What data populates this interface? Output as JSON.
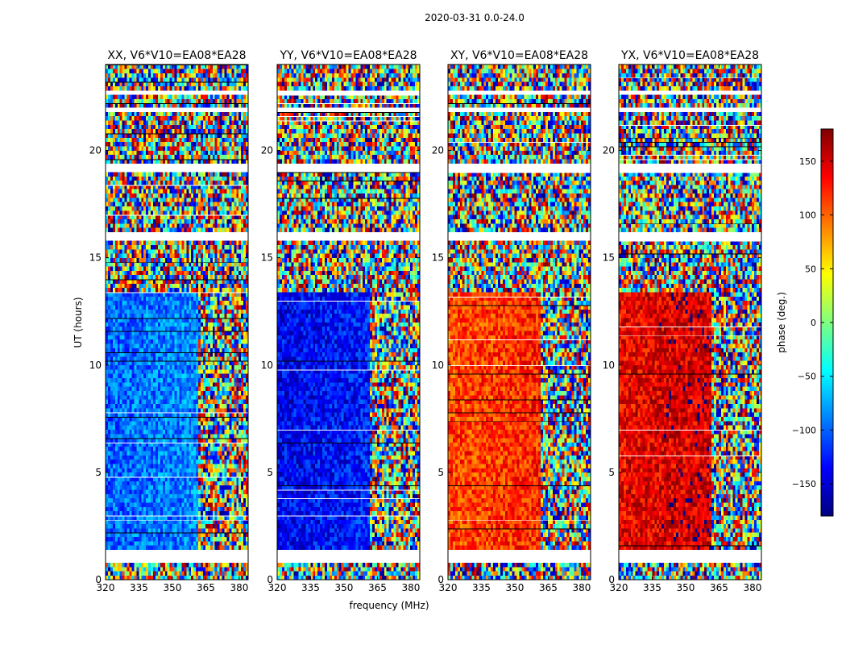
{
  "figure": {
    "suptitle": "2020-03-31 0.0-24.0"
  },
  "chart_data": {
    "type": "heatmap",
    "suptitle": "2020-03-31 0.0-24.0",
    "xlabel": "frequency (MHz)",
    "ylabel": "UT (hours)",
    "xlim": [
      320,
      384
    ],
    "ylim": [
      0,
      24
    ],
    "x_ticks": [
      320,
      335,
      350,
      365,
      380
    ],
    "y_ticks": [
      0,
      5,
      10,
      15,
      20
    ],
    "panels": [
      {
        "title": "XX, V6*V10=EA08*EA28",
        "pol": "XX",
        "baseline": "V6*V10=EA08*EA28",
        "typical_phase_deg_below_361MHz": -100
      },
      {
        "title": "YY, V6*V10=EA08*EA28",
        "pol": "YY",
        "baseline": "V6*V10=EA08*EA28",
        "typical_phase_deg_below_361MHz": -140
      },
      {
        "title": "XY, V6*V10=EA08*EA28",
        "pol": "XY",
        "baseline": "V6*V10=EA08*EA28",
        "typical_phase_deg_below_361MHz": 110
      },
      {
        "title": "YX, V6*V10=EA08*EA28",
        "pol": "YX",
        "baseline": "V6*V10=EA08*EA28",
        "typical_phase_deg_below_361MHz": 140
      }
    ],
    "colorbar": {
      "label": "phase (deg.)",
      "range": [
        -180,
        180
      ],
      "ticks": [
        150,
        100,
        50,
        0,
        -50,
        -100,
        -150
      ],
      "tick_labels": [
        "150",
        "100",
        "50",
        "0",
        "−50",
        "−100",
        "−150"
      ],
      "colormap": "jet",
      "colors": [
        "#00007f",
        "#0000ff",
        "#007fff",
        "#00ffff",
        "#7fff7f",
        "#ffff00",
        "#ff7f00",
        "#ff0000",
        "#7f0000"
      ]
    },
    "flagged_hours": [
      [
        0.9,
        1.35
      ],
      [
        15.85,
        16.1
      ],
      [
        18.95,
        19.35
      ],
      [
        21.75,
        21.95
      ],
      [
        22.6,
        22.75
      ]
    ]
  }
}
